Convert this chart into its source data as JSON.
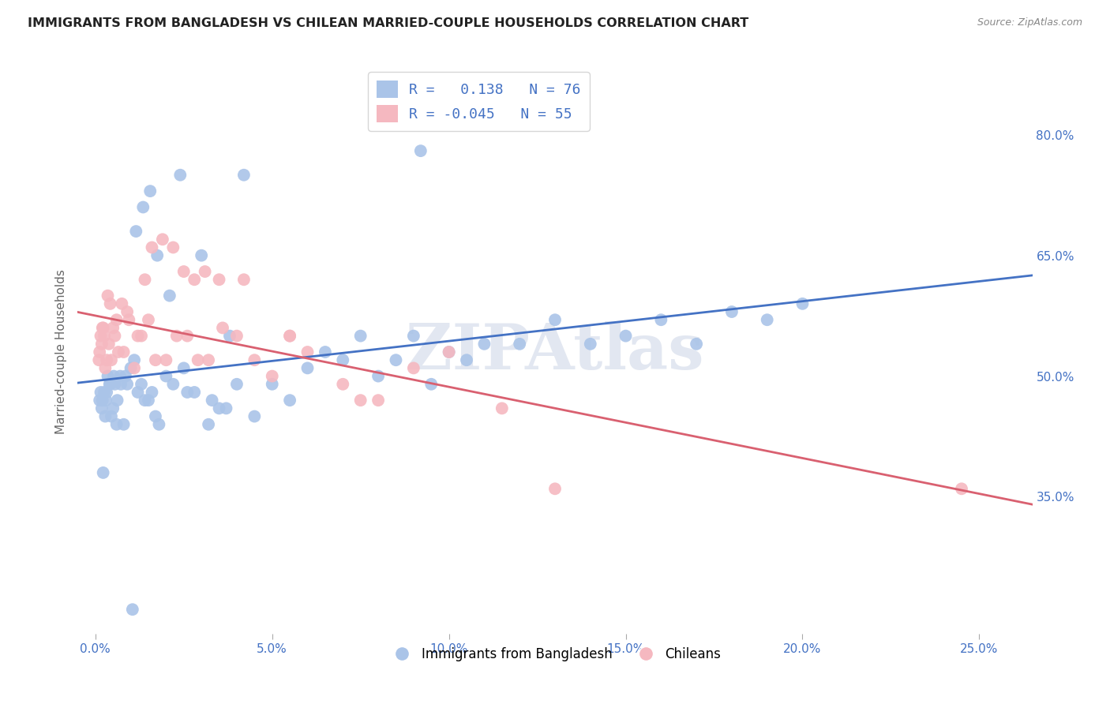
{
  "title": "IMMIGRANTS FROM BANGLADESH VS CHILEAN MARRIED-COUPLE HOUSEHOLDS CORRELATION CHART",
  "source": "Source: ZipAtlas.com",
  "xlabel_vals": [
    0.0,
    5.0,
    10.0,
    15.0,
    20.0,
    25.0
  ],
  "xlabel_ticks": [
    "0.0%",
    "5.0%",
    "10.0%",
    "15.0%",
    "20.0%",
    "25.0%"
  ],
  "ylabel_vals": [
    35.0,
    50.0,
    65.0,
    80.0
  ],
  "ylabel_ticks": [
    "35.0%",
    "50.0%",
    "65.0%",
    "80.0%"
  ],
  "ylim": [
    18.0,
    88.0
  ],
  "xlim": [
    -0.5,
    26.5
  ],
  "blue_color": "#aac4e8",
  "pink_color": "#f5b8c0",
  "blue_line_color": "#4472c4",
  "pink_line_color": "#d96070",
  "watermark": "ZIPAtlas",
  "legend_R_blue": "R =   0.138",
  "legend_N_blue": "N = 76",
  "legend_R_pink": "R = -0.045",
  "legend_N_pink": "N = 55",
  "ylabel": "Married-couple Households",
  "legend_label_blue": "Immigrants from Bangladesh",
  "legend_label_pink": "Chileans",
  "blue_x": [
    0.12,
    0.15,
    0.18,
    0.2,
    0.25,
    0.3,
    0.35,
    0.4,
    0.45,
    0.5,
    0.55,
    0.6,
    0.7,
    0.8,
    0.9,
    1.0,
    1.1,
    1.2,
    1.3,
    1.4,
    1.5,
    1.6,
    1.7,
    1.8,
    2.0,
    2.2,
    2.5,
    2.8,
    3.2,
    3.5,
    4.0,
    4.5,
    5.0,
    5.5,
    6.0,
    6.5,
    7.0,
    7.5,
    8.0,
    8.5,
    9.0,
    9.5,
    10.0,
    10.5,
    11.0,
    12.0,
    13.0,
    14.0,
    15.0,
    16.0,
    17.0,
    18.0,
    19.0,
    20.0,
    0.22,
    0.28,
    0.32,
    0.42,
    0.52,
    0.62,
    0.72,
    0.85,
    1.15,
    1.35,
    1.55,
    1.75,
    2.1,
    2.4,
    3.0,
    3.8,
    4.2,
    1.05,
    2.6,
    3.3,
    3.7,
    9.2
  ],
  "blue_y": [
    47,
    48,
    46,
    47,
    48,
    47,
    50,
    49,
    45,
    46,
    49,
    44,
    50,
    44,
    49,
    51,
    52,
    48,
    49,
    47,
    47,
    48,
    45,
    44,
    50,
    49,
    51,
    48,
    44,
    46,
    49,
    45,
    49,
    47,
    51,
    53,
    52,
    55,
    50,
    52,
    55,
    49,
    53,
    52,
    54,
    54,
    57,
    54,
    55,
    57,
    54,
    58,
    57,
    59,
    38,
    45,
    48,
    49,
    50,
    47,
    49,
    50,
    68,
    71,
    73,
    65,
    60,
    75,
    65,
    55,
    75,
    21,
    48,
    47,
    46,
    78
  ],
  "pink_x": [
    0.1,
    0.15,
    0.18,
    0.22,
    0.28,
    0.32,
    0.38,
    0.45,
    0.55,
    0.65,
    0.8,
    0.95,
    1.1,
    1.3,
    1.5,
    1.7,
    2.0,
    2.3,
    2.6,
    2.9,
    3.2,
    3.6,
    4.0,
    4.5,
    5.0,
    5.5,
    6.0,
    7.0,
    8.0,
    9.0,
    10.0,
    11.5,
    13.0,
    24.5,
    0.12,
    0.2,
    0.25,
    0.35,
    0.42,
    0.5,
    0.6,
    0.75,
    0.9,
    1.2,
    1.4,
    1.6,
    1.9,
    2.2,
    2.5,
    2.8,
    3.1,
    3.5,
    4.2,
    5.5,
    7.5
  ],
  "pink_y": [
    52,
    55,
    54,
    56,
    51,
    52,
    54,
    52,
    55,
    53,
    53,
    57,
    51,
    55,
    57,
    52,
    52,
    55,
    55,
    52,
    52,
    56,
    55,
    52,
    50,
    55,
    53,
    49,
    47,
    51,
    53,
    46,
    36,
    36,
    53,
    56,
    55,
    60,
    59,
    56,
    57,
    59,
    58,
    55,
    62,
    66,
    67,
    66,
    63,
    62,
    63,
    62,
    62,
    55,
    47
  ]
}
